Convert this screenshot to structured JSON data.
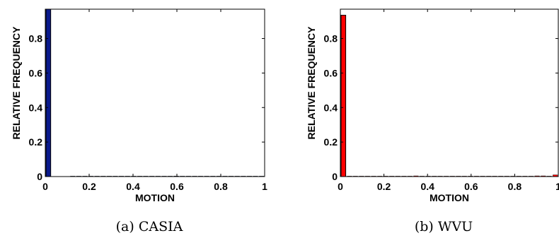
{
  "chart_data": [
    {
      "type": "bar",
      "caption": "(a) CASIA",
      "xlabel": "MOTION",
      "ylabel": "RELATIVE FREQUENCY",
      "xlim": [
        0,
        1
      ],
      "ylim": [
        0,
        0.97
      ],
      "xticks": [
        "0",
        "0.2",
        "0.4",
        "0.6",
        "0.8",
        "1"
      ],
      "yticks": [
        "0",
        "0.2",
        "0.4",
        "0.6",
        "0.8"
      ],
      "bar_color": "#0a1a8c",
      "grid": false,
      "bin_width": 0.0278,
      "x": [
        0.014,
        0.125,
        0.153,
        0.181,
        0.208,
        0.236,
        0.264,
        0.292,
        0.319,
        0.347,
        0.375,
        0.403,
        0.431,
        0.458,
        0.486,
        0.514,
        0.542,
        0.569,
        0.597,
        0.625,
        0.653,
        0.681,
        0.708,
        0.736,
        0.764,
        0.792,
        0.819,
        0.847,
        0.875,
        0.903,
        0.931,
        0.958,
        0.986
      ],
      "values": [
        0.97,
        0.0,
        0.0,
        0.0,
        0.0,
        0.0,
        0.0,
        0.0,
        0.0,
        0.0,
        0.0,
        0.0,
        0.0,
        0.002,
        0.0,
        0.0,
        0.0,
        0.0,
        0.003,
        0.0,
        0.0,
        0.0,
        0.0,
        0.0,
        0.0,
        0.0,
        0.0,
        0.0,
        0.0,
        0.0,
        0.0,
        0.0,
        0.002
      ]
    },
    {
      "type": "bar",
      "caption": "(b) WVU",
      "xlabel": "MOTION",
      "ylabel": "RELATIVE FREQUENCY",
      "xlim": [
        0,
        1
      ],
      "ylim": [
        0,
        0.97
      ],
      "xticks": [
        "0",
        "0.2",
        "0.4",
        "0.6",
        "0.8",
        "1"
      ],
      "yticks": [
        "0",
        "0.2",
        "0.4",
        "0.6",
        "0.8"
      ],
      "bar_color": "#ff0000",
      "grid": false,
      "bin_width": 0.0278,
      "x": [
        0.014,
        0.042,
        0.069,
        0.097,
        0.125,
        0.153,
        0.181,
        0.208,
        0.236,
        0.264,
        0.292,
        0.319,
        0.347,
        0.375,
        0.403,
        0.431,
        0.458,
        0.486,
        0.514,
        0.542,
        0.569,
        0.597,
        0.625,
        0.653,
        0.681,
        0.708,
        0.736,
        0.764,
        0.792,
        0.819,
        0.847,
        0.875,
        0.903,
        0.931,
        0.958,
        0.986
      ],
      "values": [
        0.935,
        0.0,
        0.0,
        0.0,
        0.0,
        0.0,
        0.0,
        0.002,
        0.0,
        0.0,
        0.0,
        0.0,
        0.004,
        0.0,
        0.0,
        0.0,
        0.0,
        0.0,
        0.0,
        0.0,
        0.0,
        0.0,
        0.0,
        0.0,
        0.0,
        0.0,
        0.0,
        0.0,
        0.0,
        0.0,
        0.0,
        0.0,
        0.004,
        0.004,
        0.0,
        0.01
      ]
    }
  ]
}
